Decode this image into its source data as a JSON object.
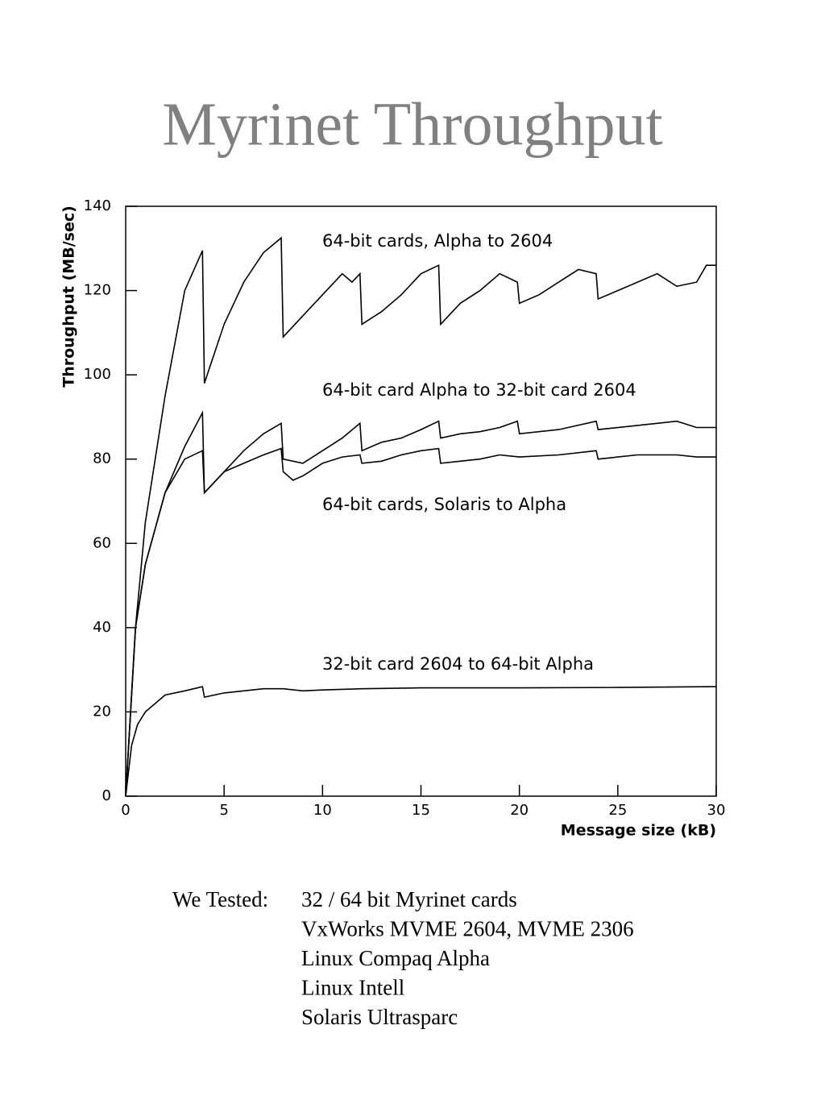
{
  "chart_data": {
    "type": "line",
    "title": "Myrinet Throughput",
    "x_label": "Message size (kB)",
    "y_label": "Throughput (MB/sec)",
    "xlim": [
      0,
      30
    ],
    "xticks": [
      0,
      5,
      10,
      15,
      20,
      25,
      30
    ],
    "ylim": [
      0,
      140
    ],
    "yticks": [
      0,
      20,
      40,
      60,
      80,
      100,
      120,
      140
    ],
    "series": [
      {
        "name": "64-bit cards, Alpha to 2604",
        "color": "#000000",
        "x": [
          0,
          0.5,
          1,
          2,
          3,
          3.9,
          4,
          5,
          6,
          7,
          7.9,
          8,
          9,
          10,
          11,
          11.5,
          11.9,
          12,
          13,
          14,
          15,
          15.9,
          16,
          17,
          18,
          19,
          19.9,
          20,
          21,
          22,
          23,
          23.9,
          24,
          25,
          26,
          27,
          28,
          29,
          29.5,
          30
        ],
        "values": [
          0,
          40,
          65,
          95,
          120,
          129.5,
          98,
          112,
          122,
          129,
          132.5,
          109,
          114,
          119,
          124,
          122,
          124,
          112,
          115,
          119,
          124,
          126,
          112,
          117,
          120,
          124,
          122,
          117,
          119,
          122,
          125,
          124,
          118,
          120,
          122,
          124,
          121,
          122,
          126,
          126
        ]
      },
      {
        "name": "64-bit card Alpha to 32-bit card 2604",
        "color": "#000000",
        "x": [
          0,
          0.5,
          1,
          2,
          3,
          3.9,
          4,
          5,
          6,
          7,
          7.9,
          8,
          9,
          10,
          11,
          11.9,
          12,
          13,
          14,
          15,
          15.9,
          16,
          17,
          18,
          19,
          19.9,
          20,
          22,
          23.9,
          24,
          26,
          28,
          29,
          30
        ],
        "values": [
          0,
          40,
          55,
          72,
          83,
          91,
          72,
          77,
          82,
          86,
          88.5,
          80,
          79,
          82,
          85,
          88.5,
          82,
          84,
          85,
          87,
          89,
          85,
          86,
          86.5,
          87.5,
          89,
          86,
          87,
          89,
          87,
          88,
          89,
          87.5,
          87.5
        ]
      },
      {
        "name": "64-bit cards, Solaris to Alpha",
        "color": "#000000",
        "x": [
          0,
          0.5,
          1,
          2,
          3,
          3.9,
          4,
          5,
          6,
          7,
          7.9,
          8,
          8.5,
          9,
          10,
          11,
          11.9,
          12,
          13,
          14,
          15,
          15.9,
          16,
          17,
          18,
          19,
          20,
          22,
          23.9,
          24,
          26,
          28,
          29,
          30
        ],
        "values": [
          0,
          40,
          55,
          72,
          80,
          82,
          72,
          77,
          79,
          81,
          82.5,
          77,
          75,
          76,
          79,
          80.5,
          81,
          79,
          79.5,
          81,
          82,
          82.5,
          79,
          79.5,
          80,
          81,
          80.5,
          81,
          82,
          80,
          81,
          81,
          80.5,
          80.5
        ]
      },
      {
        "name": "32-bit card 2604 to 64-bit Alpha",
        "color": "#000000",
        "x": [
          0,
          0.3,
          0.6,
          1,
          2,
          3,
          3.9,
          4,
          5,
          6,
          7,
          8,
          9,
          10,
          12,
          15,
          20,
          25,
          30
        ],
        "values": [
          0,
          12,
          17,
          20,
          24,
          25,
          26,
          23.5,
          24.5,
          25,
          25.5,
          25.5,
          25,
          25.2,
          25.5,
          25.7,
          25.7,
          25.8,
          26
        ]
      }
    ]
  },
  "notes": {
    "label": "We Tested:",
    "items": [
      "32 / 64 bit Myrinet cards",
      "VxWorks MVME 2604, MVME 2306",
      "Linux Compaq Alpha",
      "Linux Intell",
      "Solaris Ultrasparc"
    ]
  }
}
